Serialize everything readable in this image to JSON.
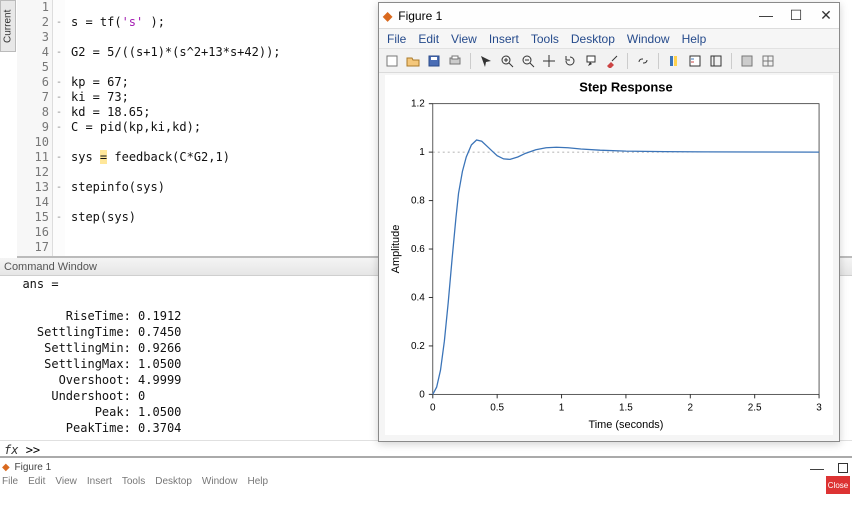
{
  "left_tab": "Current",
  "editor": {
    "lines": [
      {
        "n": 1,
        "m": "",
        "code": ""
      },
      {
        "n": 2,
        "m": "-",
        "code_segs": [
          {
            "t": "s = tf("
          },
          {
            "t": "'s'",
            "cls": "str"
          },
          {
            "t": " );"
          }
        ]
      },
      {
        "n": 3,
        "m": "",
        "code": ""
      },
      {
        "n": 4,
        "m": "-",
        "code_segs": [
          {
            "t": "G2 = 5/((s+1)*(s^2+13*s+42));"
          }
        ]
      },
      {
        "n": 5,
        "m": "",
        "code": ""
      },
      {
        "n": 6,
        "m": "-",
        "code_segs": [
          {
            "t": "kp = 67;"
          }
        ]
      },
      {
        "n": 7,
        "m": "-",
        "code_segs": [
          {
            "t": "ki = 73;"
          }
        ]
      },
      {
        "n": 8,
        "m": "-",
        "code_segs": [
          {
            "t": "kd = 18.65;"
          }
        ]
      },
      {
        "n": 9,
        "m": "-",
        "code_segs": [
          {
            "t": "C = pid(kp,ki,kd);"
          }
        ]
      },
      {
        "n": 10,
        "m": "",
        "code": ""
      },
      {
        "n": 11,
        "m": "-",
        "code_segs": [
          {
            "t": "sys "
          },
          {
            "t": "=",
            "cls": "hl"
          },
          {
            "t": " feedback(C*G2,1)"
          }
        ]
      },
      {
        "n": 12,
        "m": "",
        "code": ""
      },
      {
        "n": 13,
        "m": "-",
        "code_segs": [
          {
            "t": "stepinfo(sys)"
          }
        ]
      },
      {
        "n": 14,
        "m": "",
        "code": ""
      },
      {
        "n": 15,
        "m": "-",
        "code_segs": [
          {
            "t": "step(sys)"
          }
        ]
      },
      {
        "n": 16,
        "m": "",
        "code": ""
      },
      {
        "n": 17,
        "m": "",
        "code": ""
      }
    ]
  },
  "command_window": {
    "title": "Command Window",
    "output": "  ans =\n\n        RiseTime: 0.1912\n    SettlingTime: 0.7450\n     SettlingMin: 0.9266\n     SettlingMax: 1.0500\n       Overshoot: 4.9999\n      Undershoot: 0\n            Peak: 1.0500\n        PeakTime: 0.3704",
    "prompt_fx": "fx",
    "prompt": ">>"
  },
  "footer": {
    "fig_label": "Figure 1",
    "menus": [
      "File",
      "Edit",
      "View",
      "Insert",
      "Tools",
      "Desktop",
      "Window",
      "Help"
    ],
    "close_label": "Close"
  },
  "figure": {
    "title": "Figure 1",
    "menus": [
      "File",
      "Edit",
      "View",
      "Insert",
      "Tools",
      "Desktop",
      "Window",
      "Help"
    ],
    "toolbar_names": [
      "new",
      "open",
      "save",
      "print",
      "arrow",
      "zoom-in",
      "zoom-out",
      "pan",
      "rotate",
      "datatip",
      "brush",
      "link",
      "colorbar",
      "legend",
      "insert",
      "axes",
      "grid"
    ],
    "chart": {
      "title": "Step Response",
      "title_fontweight": "bold",
      "xlabel": "Time (seconds)",
      "ylabel": "Amplitude",
      "xlim": [
        0,
        3
      ],
      "ylim": [
        0,
        1.2
      ],
      "xticks": [
        0,
        0.5,
        1,
        1.5,
        2,
        2.5,
        3
      ],
      "yticks": [
        0,
        0.2,
        0.4,
        0.6,
        0.8,
        1,
        1.2
      ],
      "axis_color": "#333333",
      "tick_fontsize": 10,
      "line_color": "#3b74b8",
      "line_width": 1.3,
      "ref_line_y": 1,
      "ref_line_color": "#999999",
      "ref_line_dash": "2,3",
      "background": "#ffffff",
      "series": [
        [
          0.0,
          0.0
        ],
        [
          0.03,
          0.03
        ],
        [
          0.06,
          0.1
        ],
        [
          0.09,
          0.22
        ],
        [
          0.12,
          0.38
        ],
        [
          0.15,
          0.56
        ],
        [
          0.18,
          0.73
        ],
        [
          0.2,
          0.83
        ],
        [
          0.23,
          0.92
        ],
        [
          0.26,
          0.98
        ],
        [
          0.3,
          1.03
        ],
        [
          0.34,
          1.05
        ],
        [
          0.38,
          1.045
        ],
        [
          0.42,
          1.025
        ],
        [
          0.46,
          1.005
        ],
        [
          0.5,
          0.985
        ],
        [
          0.55,
          0.972
        ],
        [
          0.6,
          0.97
        ],
        [
          0.66,
          0.98
        ],
        [
          0.72,
          0.995
        ],
        [
          0.8,
          1.01
        ],
        [
          0.88,
          1.018
        ],
        [
          0.96,
          1.02
        ],
        [
          1.05,
          1.018
        ],
        [
          1.15,
          1.013
        ],
        [
          1.3,
          1.008
        ],
        [
          1.5,
          1.004
        ],
        [
          1.8,
          1.002
        ],
        [
          2.1,
          1.001
        ],
        [
          2.5,
          1.0005
        ],
        [
          3.0,
          1.0
        ]
      ]
    }
  }
}
